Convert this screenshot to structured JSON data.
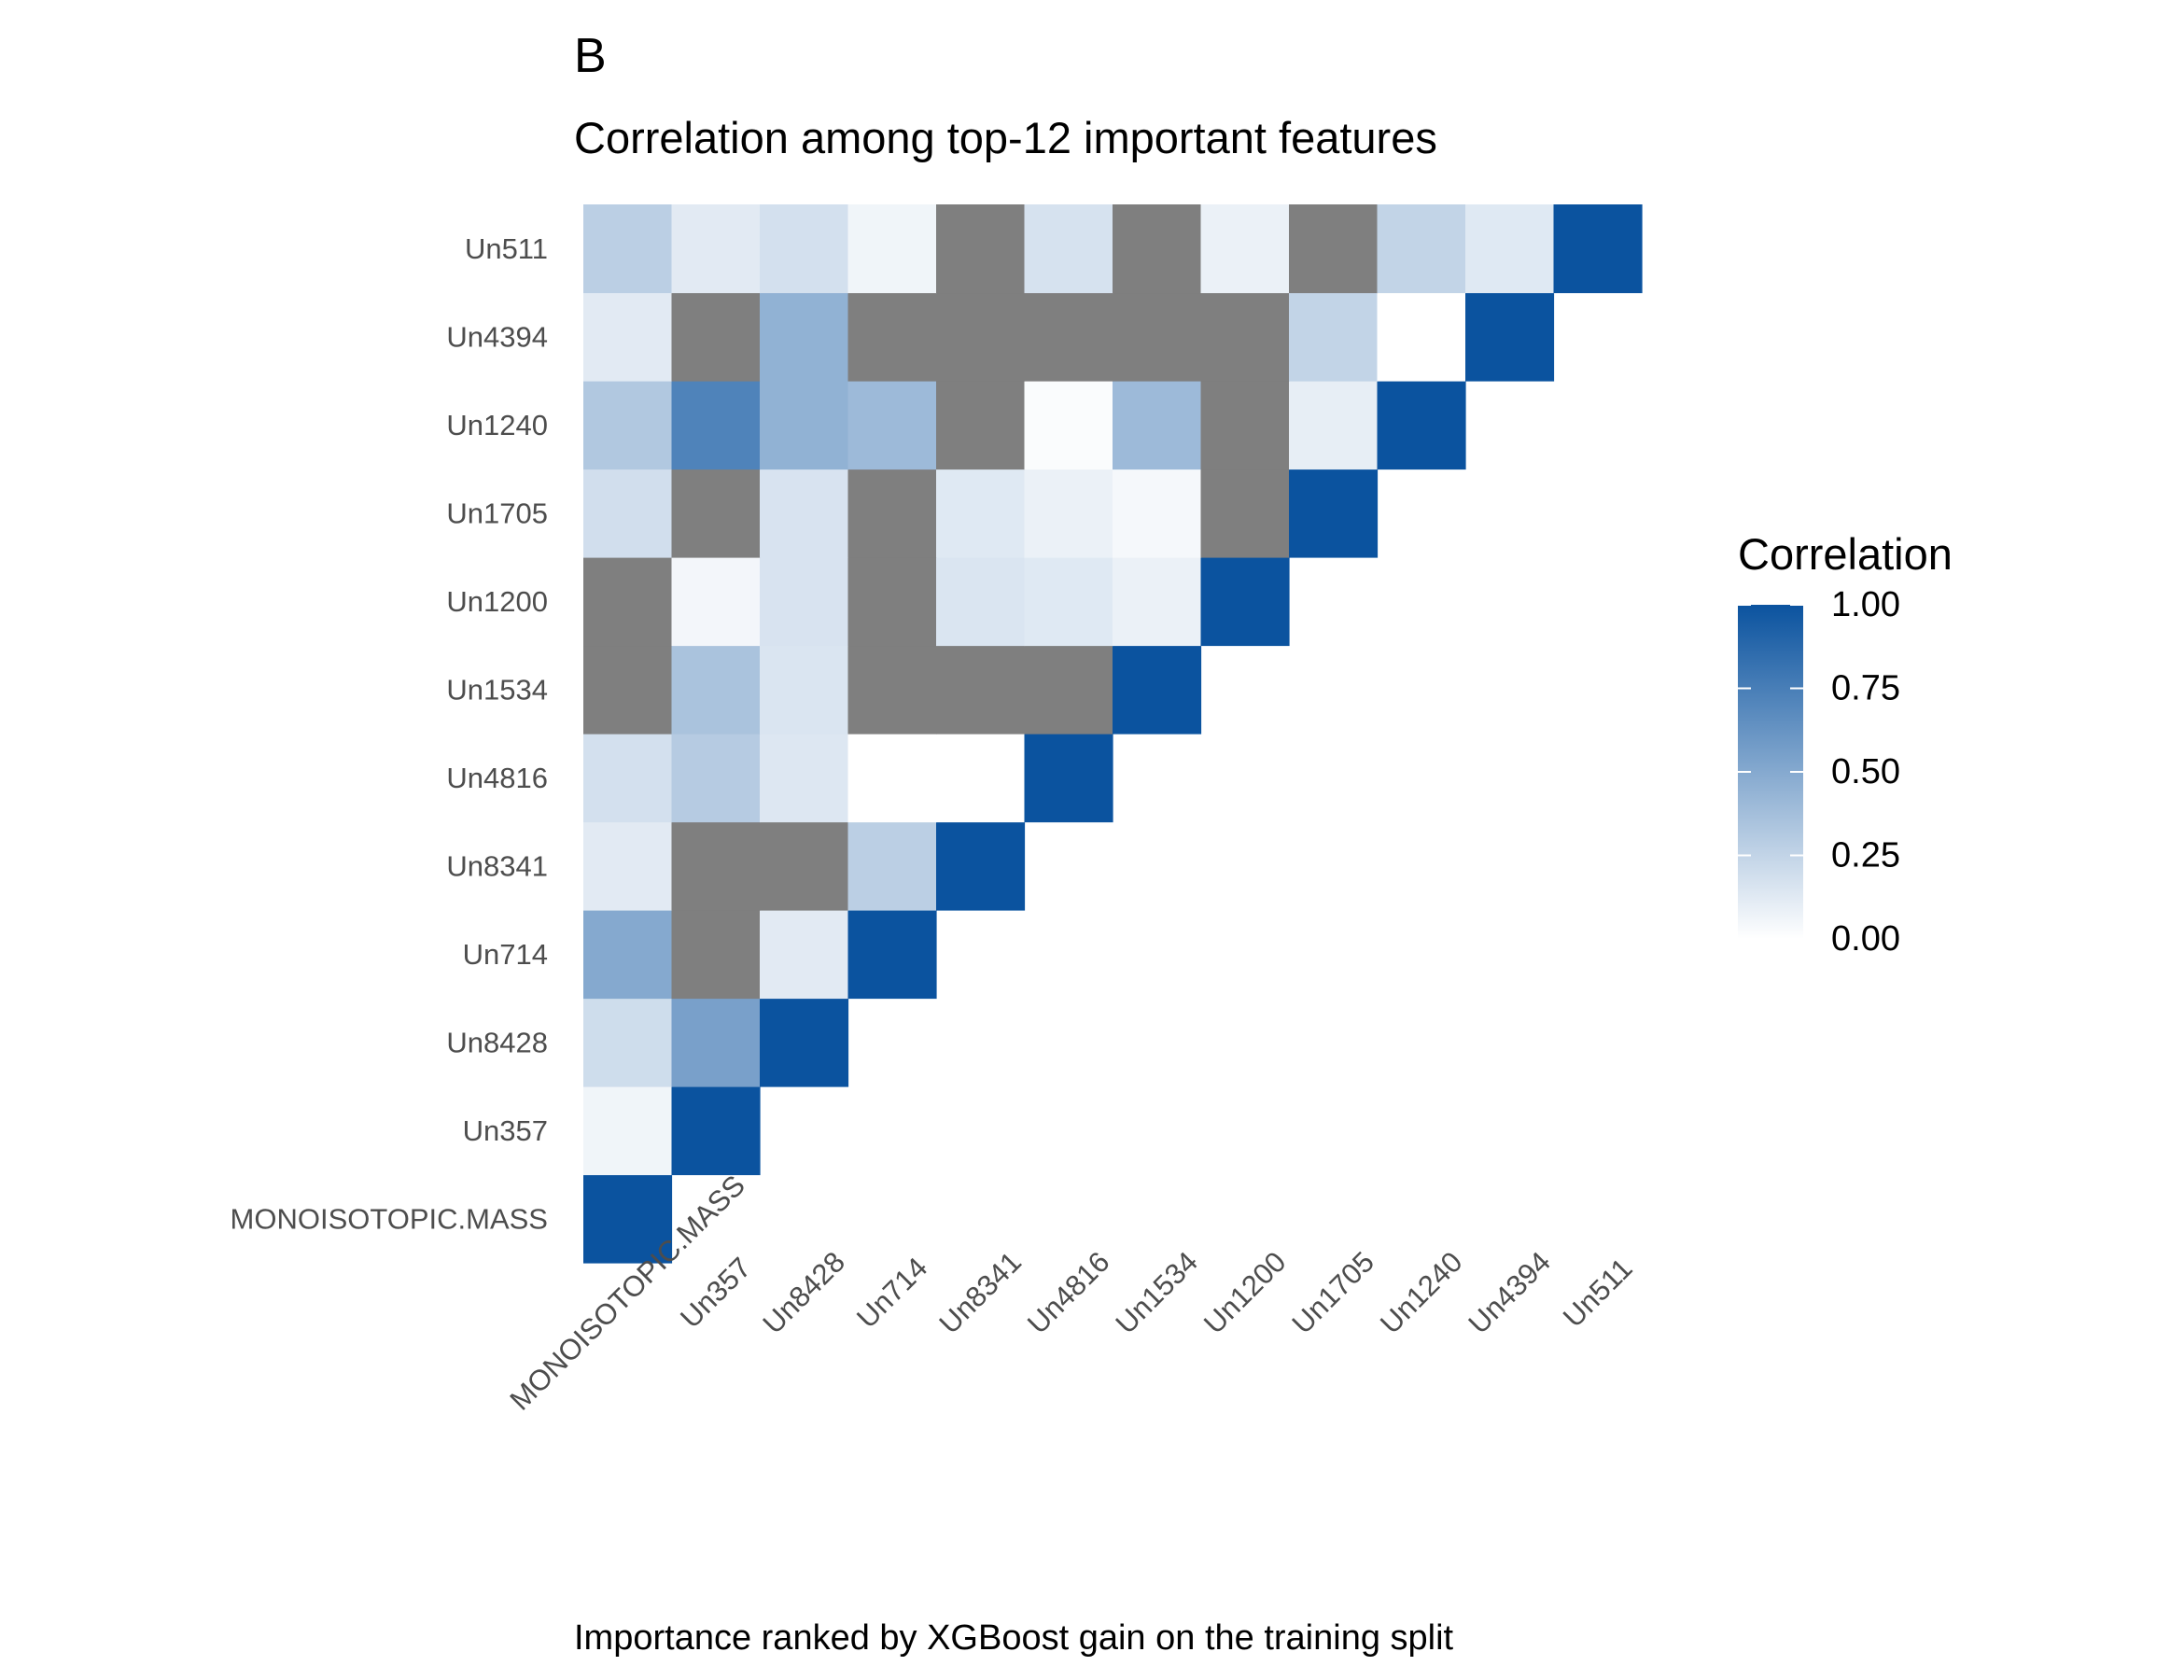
{
  "chart_data": {
    "type": "heatmap",
    "tag": "B",
    "title": "Correlation among top-12 important features",
    "caption": "Importance ranked by XGBoost gain on the training split",
    "features": [
      "MONOISOTOPIC.MASS",
      "Un357",
      "Un8428",
      "Un714",
      "Un8341",
      "Un4816",
      "Un1534",
      "Un1200",
      "Un1705",
      "Un1240",
      "Un4394",
      "Un511"
    ],
    "legend": {
      "title": "Correlation",
      "range": [
        0,
        1
      ],
      "breaks": [
        "0.00",
        "0.25",
        "0.50",
        "0.75",
        "1.00"
      ],
      "low_color": "#ffffff",
      "high_color": "#0b539f",
      "na_color": "#7f7f7f"
    },
    "values": [
      [
        1.0,
        null,
        null,
        null,
        null,
        null,
        null,
        null,
        null,
        null,
        null,
        null
      ],
      [
        0.06,
        1.0,
        null,
        null,
        null,
        null,
        null,
        null,
        null,
        null,
        null,
        null
      ],
      [
        0.2,
        0.55,
        1.0,
        null,
        null,
        null,
        null,
        null,
        null,
        null,
        null,
        null
      ],
      [
        0.5,
        null,
        0.12,
        1.0,
        null,
        null,
        null,
        null,
        null,
        null,
        null,
        null
      ],
      [
        0.12,
        null,
        null,
        0.28,
        1.0,
        null,
        null,
        null,
        null,
        null,
        null,
        null
      ],
      [
        0.18,
        0.3,
        0.14,
        0.0,
        0.0,
        1.0,
        null,
        null,
        null,
        null,
        null,
        null
      ],
      [
        null,
        0.35,
        0.15,
        null,
        null,
        null,
        1.0,
        null,
        null,
        null,
        null,
        null
      ],
      [
        null,
        0.05,
        0.16,
        null,
        0.15,
        0.13,
        0.08,
        1.0,
        null,
        null,
        null,
        null
      ],
      [
        0.19,
        null,
        0.16,
        null,
        0.13,
        0.08,
        0.04,
        null,
        1.0,
        null,
        null,
        null
      ],
      [
        0.32,
        0.72,
        0.45,
        0.4,
        null,
        0.02,
        0.4,
        null,
        0.1,
        1.0,
        null,
        null
      ],
      [
        0.12,
        null,
        0.45,
        null,
        null,
        null,
        null,
        null,
        0.25,
        0.0,
        1.0,
        null
      ],
      [
        0.28,
        0.12,
        0.18,
        0.06,
        null,
        0.17,
        null,
        0.08,
        null,
        0.25,
        0.13,
        1.0
      ]
    ]
  }
}
